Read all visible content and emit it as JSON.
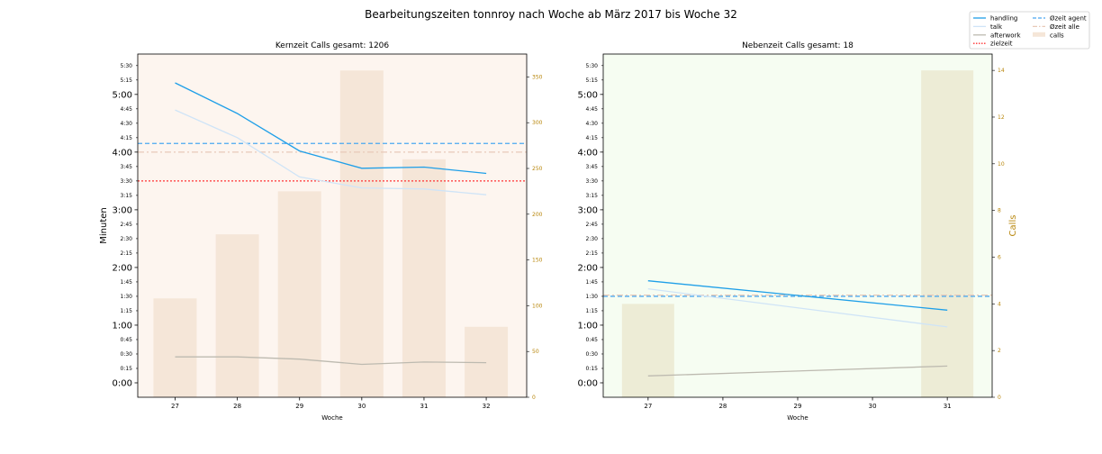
{
  "suptitle": "Bearbeitungszeiten tonnroy nach Woche ab März 2017 bis Woche 32",
  "colors": {
    "handling": "#1f9fe8",
    "talk": "#cfe4f7",
    "afterwork": "#bdbab0",
    "zielzeit": "#ff3333",
    "ozeit_agent": "#4aa8f0",
    "ozeit_alle": "#e8c9b8",
    "calls_left": "#f5e6d8",
    "calls_right": "#edecd6",
    "bg_left": "#fdf5ef",
    "bg_right": "#f6fdf2",
    "right_axis_text": "#b8860b"
  },
  "legend": {
    "placement": "top-right",
    "items": [
      {
        "label": "handling",
        "style": "solid",
        "color_key": "handling"
      },
      {
        "label": "Øzeit agent",
        "style": "dashed",
        "color_key": "ozeit_agent"
      },
      {
        "label": "talk",
        "style": "solid",
        "color_key": "talk"
      },
      {
        "label": "Øzeit alle",
        "style": "dashdot",
        "color_key": "ozeit_alle"
      },
      {
        "label": "afterwork",
        "style": "solid",
        "color_key": "afterwork"
      },
      {
        "label": "calls",
        "style": "patch",
        "color_key": "calls_left"
      },
      {
        "label": "zielzeit",
        "style": "dotted",
        "color_key": "zielzeit"
      }
    ]
  },
  "chart_data": [
    {
      "type": "line",
      "title": "Kernzeit Calls gesamt: 1206",
      "xlabel": "Woche",
      "ylabel": "Minuten",
      "ylabel_right": "",
      "x": [
        27,
        28,
        29,
        30,
        31,
        32
      ],
      "xlim": [
        26.4,
        32.65
      ],
      "ylim": [
        -0.25,
        5.7
      ],
      "ylim_right": [
        0,
        375
      ],
      "major_ticks": [
        "0:00",
        "1:00",
        "2:00",
        "3:00",
        "4:00",
        "5:00"
      ],
      "minor_ticks": [
        "0:15",
        "0:30",
        "0:45",
        "1:15",
        "1:30",
        "1:45",
        "2:15",
        "2:30",
        "2:45",
        "3:15",
        "3:30",
        "3:45",
        "4:15",
        "4:30",
        "4:45",
        "5:15",
        "5:30"
      ],
      "right_ticks": [
        "0",
        "50",
        "100",
        "150",
        "200",
        "250",
        "300",
        "350"
      ],
      "series": [
        {
          "name": "handling",
          "values": [
            5.2,
            4.67,
            4.02,
            3.72,
            3.74,
            3.63
          ]
        },
        {
          "name": "talk",
          "values": [
            4.73,
            4.25,
            3.57,
            3.38,
            3.36,
            3.26
          ]
        },
        {
          "name": "afterwork",
          "values": [
            0.45,
            0.45,
            0.41,
            0.32,
            0.36,
            0.35
          ]
        }
      ],
      "hlines": [
        {
          "name": "Øzeit agent",
          "value": 4.15
        },
        {
          "name": "Øzeit alle",
          "value": 4.0
        },
        {
          "name": "zielzeit",
          "value": 3.5
        }
      ],
      "bars": {
        "name": "calls",
        "values": [
          108,
          178,
          225,
          357,
          260,
          77
        ]
      }
    },
    {
      "type": "line",
      "title": "Nebenzeit Calls gesamt: 18",
      "xlabel": "Woche",
      "ylabel": "",
      "ylabel_right": "Calls",
      "x": [
        27,
        31
      ],
      "x_categories": [
        27,
        28,
        29,
        30,
        31
      ],
      "xlim": [
        26.4,
        31.6
      ],
      "ylim": [
        -0.25,
        5.7
      ],
      "ylim_right": [
        0,
        14.7
      ],
      "major_ticks": [
        "0:00",
        "1:00",
        "2:00",
        "3:00",
        "4:00",
        "5:00"
      ],
      "minor_ticks": [
        "0:15",
        "0:30",
        "0:45",
        "1:15",
        "1:30",
        "1:45",
        "2:15",
        "2:30",
        "2:45",
        "3:15",
        "3:30",
        "3:45",
        "4:15",
        "4:30",
        "4:45",
        "5:15",
        "5:30"
      ],
      "right_ticks": [
        "0",
        "2",
        "4",
        "6",
        "8",
        "10",
        "12",
        "14"
      ],
      "series": [
        {
          "name": "handling",
          "values": [
            1.77,
            1.26
          ]
        },
        {
          "name": "talk",
          "values": [
            1.63,
            0.97
          ]
        },
        {
          "name": "afterwork",
          "values": [
            0.12,
            0.29
          ]
        }
      ],
      "hlines": [
        {
          "name": "Øzeit agent",
          "value": 1.5
        },
        {
          "name": "Øzeit alle",
          "value": 1.52
        }
      ],
      "bars": {
        "name": "calls",
        "values": [
          4,
          14
        ]
      }
    }
  ]
}
